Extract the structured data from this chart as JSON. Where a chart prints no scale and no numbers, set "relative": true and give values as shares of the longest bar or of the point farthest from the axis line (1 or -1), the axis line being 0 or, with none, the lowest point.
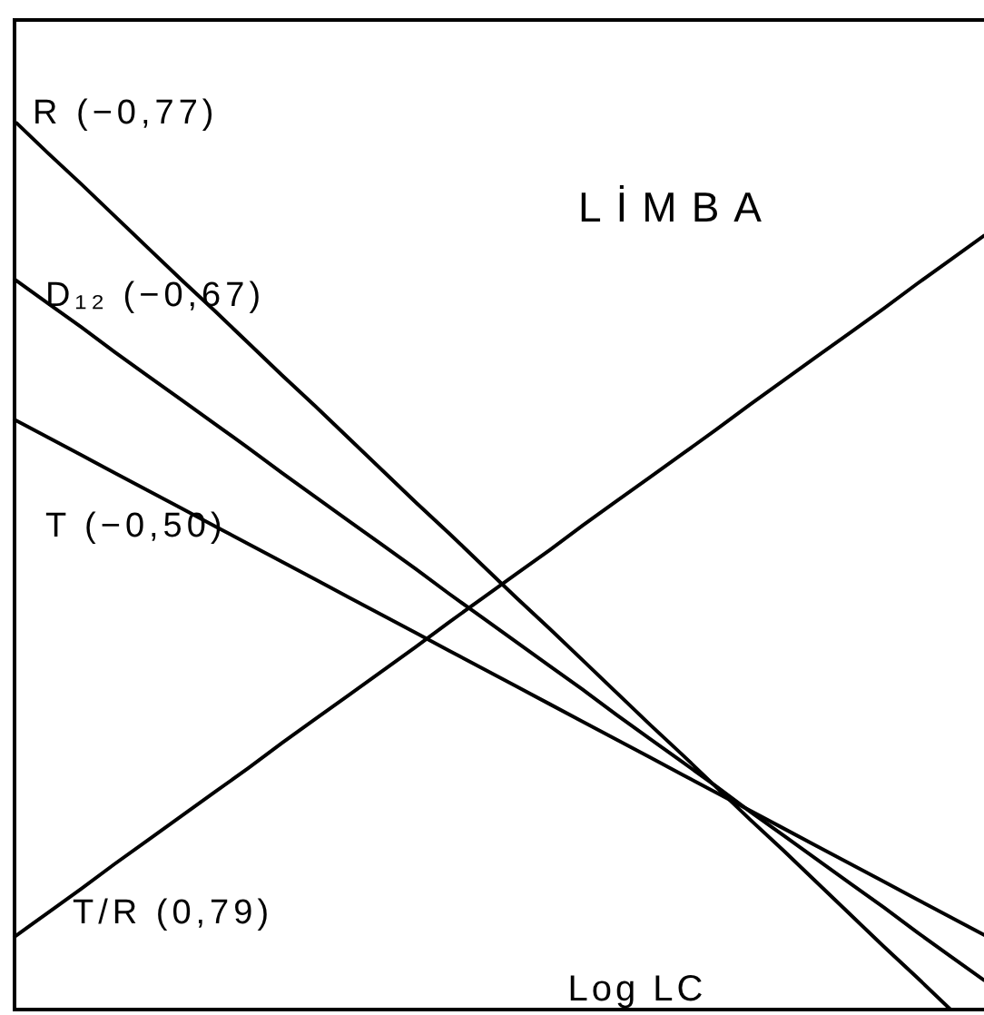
{
  "chart_data": {
    "type": "line",
    "title": "LİMBA",
    "xlabel": "Log LC",
    "relative": true,
    "line_style": "solid",
    "marker": "none",
    "categories": [
      null,
      null,
      null,
      null,
      null,
      null,
      null,
      null,
      null,
      null,
      null,
      null,
      null,
      null,
      null,
      null,
      null,
      null,
      null,
      null,
      null,
      null,
      null,
      null,
      null,
      null,
      null,
      null,
      null,
      null
    ],
    "series": [
      {
        "name": "R (−0,77)",
        "color": "#000000",
        "values": [
          1,
          0.964,
          0.929,
          0.893,
          0.857,
          0.821,
          0.786,
          0.75,
          0.714,
          0.679,
          0.643,
          0.607,
          0.571,
          0.536,
          0.5,
          0.464,
          0.429,
          0.393,
          0.357,
          0.321,
          0.286,
          0.25,
          0.214,
          0.179,
          0.143,
          0.107,
          0.071,
          0.036,
          0,
          null
        ]
      },
      {
        "name": "D₁₂ (−0,67)",
        "color": "#000000",
        "values": [
          0.822,
          0.795,
          0.768,
          0.74,
          0.713,
          0.686,
          0.659,
          0.632,
          0.604,
          0.577,
          0.55,
          0.523,
          0.496,
          0.468,
          0.441,
          0.414,
          0.387,
          0.36,
          0.332,
          0.305,
          0.278,
          0.251,
          0.223,
          0.196,
          0.169,
          0.142,
          0.115,
          0.087,
          0.06,
          0.033
        ]
      },
      {
        "name": "T (−0,50)",
        "color": "#000000",
        "values": [
          0.664,
          0.644,
          0.624,
          0.604,
          0.584,
          0.564,
          0.544,
          0.524,
          0.504,
          0.484,
          0.464,
          0.444,
          0.424,
          0.404,
          0.384,
          0.364,
          0.344,
          0.324,
          0.304,
          0.284,
          0.264,
          0.244,
          0.224,
          0.204,
          0.184,
          0.164,
          0.144,
          0.124,
          0.104,
          0.084
        ]
      },
      {
        "name": "T/R (0,79)",
        "color": "#000000",
        "values": [
          0.082,
          0.109,
          0.136,
          0.164,
          0.191,
          0.218,
          0.245,
          0.272,
          0.3,
          0.327,
          0.354,
          0.381,
          0.408,
          0.436,
          0.463,
          0.49,
          0.517,
          0.545,
          0.572,
          0.599,
          0.626,
          0.653,
          0.681,
          0.708,
          0.735,
          0.762,
          0.789,
          0.817,
          0.844,
          0.871
        ]
      }
    ]
  }
}
